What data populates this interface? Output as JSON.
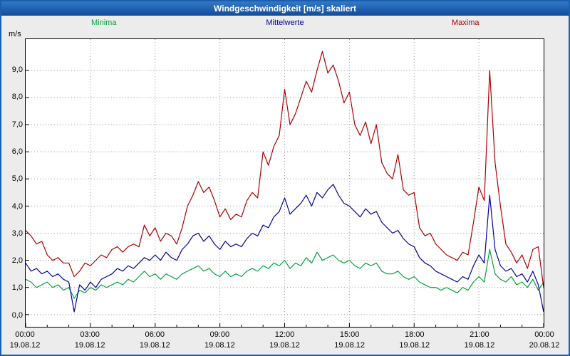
{
  "title_bar": {
    "title": "Windgeschwindigkeit [m/s] skaliert"
  },
  "chart_data": {
    "type": "line",
    "title": "Windgeschwindigkeit [m/s] skaliert",
    "ylabel": "m/s",
    "xlabel": "",
    "ylim": [
      -0.45,
      10.15
    ],
    "grid": true,
    "legend_position": "top",
    "y_ticks": [
      0,
      1,
      2,
      3,
      4,
      5,
      6,
      7,
      8,
      9
    ],
    "y_tick_labels": [
      "0,0",
      "1,0",
      "2,0",
      "3,0",
      "4,0",
      "5,0",
      "6,0",
      "7,0",
      "8,0",
      "9,0"
    ],
    "x_ticks_hours": [
      0,
      3,
      6,
      9,
      12,
      15,
      18,
      21,
      24
    ],
    "x_tick_labels": [
      "00:00",
      "03:00",
      "06:00",
      "09:00",
      "12:00",
      "15:00",
      "18:00",
      "21:00",
      "00:00"
    ],
    "x_tick_dates": [
      "19.08.12",
      "19.08.12",
      "19.08.12",
      "19.08.12",
      "19.08.12",
      "19.08.12",
      "19.08.12",
      "19.08.12",
      "20.08.12"
    ],
    "sample_interval_minutes": 15,
    "colors": {
      "minima": "#00a13a",
      "mittelwerte": "#000099",
      "maxima": "#aa0000",
      "grid": "#909090"
    },
    "legend": [
      {
        "name": "Minima",
        "color": "#00a13a"
      },
      {
        "name": "Mittelwerte",
        "color": "#000099"
      },
      {
        "name": "Maxima",
        "color": "#aa0000"
      }
    ],
    "series": [
      {
        "name": "Minima",
        "color": "#00a13a",
        "values": [
          1.3,
          1.2,
          1.0,
          1.1,
          1.2,
          1.0,
          1.1,
          0.9,
          1.0,
          0.6,
          0.9,
          0.8,
          1.0,
          0.9,
          1.1,
          1.0,
          1.1,
          1.2,
          1.1,
          1.3,
          1.2,
          1.4,
          1.6,
          1.4,
          1.5,
          1.3,
          1.5,
          1.4,
          1.3,
          1.5,
          1.6,
          1.7,
          1.8,
          1.6,
          1.7,
          1.5,
          1.4,
          1.6,
          1.4,
          1.5,
          1.4,
          1.6,
          1.7,
          1.6,
          1.8,
          1.7,
          1.9,
          1.8,
          2.0,
          1.7,
          1.9,
          1.8,
          2.1,
          1.9,
          2.3,
          2.0,
          2.1,
          2.2,
          2.0,
          1.9,
          2.0,
          1.8,
          1.7,
          1.9,
          1.8,
          1.9,
          1.6,
          1.5,
          1.5,
          1.6,
          1.4,
          1.3,
          1.4,
          1.2,
          1.1,
          1.0,
          1.0,
          0.9,
          1.0,
          0.9,
          0.8,
          1.0,
          0.9,
          1.2,
          1.4,
          1.2,
          2.4,
          1.5,
          1.3,
          1.2,
          1.4,
          1.1,
          1.2,
          1.0,
          1.3,
          0.9,
          1.2
        ]
      },
      {
        "name": "Mittelwerte",
        "color": "#000099",
        "values": [
          1.9,
          1.6,
          1.7,
          1.5,
          1.6,
          1.4,
          1.5,
          1.3,
          1.2,
          0.1,
          1.1,
          0.9,
          1.2,
          1.0,
          1.3,
          1.4,
          1.5,
          1.7,
          1.6,
          1.8,
          1.7,
          1.9,
          2.1,
          2.0,
          2.2,
          2.0,
          2.3,
          2.1,
          2.0,
          2.4,
          2.6,
          2.9,
          3.0,
          2.7,
          2.9,
          2.6,
          2.4,
          2.7,
          2.5,
          2.6,
          2.5,
          2.8,
          3.0,
          2.9,
          3.3,
          3.2,
          3.6,
          3.8,
          4.3,
          3.7,
          3.9,
          4.1,
          4.4,
          4.0,
          4.5,
          4.3,
          4.6,
          4.8,
          4.4,
          4.1,
          4.0,
          3.8,
          3.6,
          3.9,
          3.7,
          3.8,
          3.4,
          3.2,
          3.0,
          3.1,
          2.8,
          2.6,
          2.5,
          2.1,
          1.9,
          1.8,
          1.6,
          1.5,
          1.4,
          1.3,
          1.2,
          1.4,
          1.3,
          1.8,
          2.2,
          1.9,
          4.4,
          2.4,
          1.8,
          1.6,
          1.7,
          1.4,
          1.5,
          1.2,
          1.6,
          1.1,
          0.1
        ]
      },
      {
        "name": "Maxima",
        "color": "#aa0000",
        "values": [
          3.1,
          2.9,
          2.6,
          2.7,
          2.2,
          2.0,
          2.1,
          1.9,
          1.9,
          1.4,
          1.6,
          1.9,
          1.8,
          2.0,
          2.2,
          2.1,
          2.4,
          2.5,
          2.3,
          2.5,
          2.6,
          2.5,
          3.3,
          2.9,
          3.2,
          2.7,
          3.0,
          2.9,
          2.6,
          3.2,
          4.0,
          4.4,
          4.9,
          4.5,
          4.7,
          4.2,
          3.6,
          3.9,
          3.5,
          3.7,
          3.6,
          4.2,
          4.5,
          4.3,
          6.0,
          5.5,
          6.2,
          6.6,
          8.3,
          7.0,
          7.4,
          8.0,
          8.6,
          8.2,
          9.0,
          9.7,
          8.9,
          9.2,
          8.6,
          7.8,
          8.2,
          7.0,
          6.6,
          7.1,
          6.3,
          7.0,
          5.6,
          5.2,
          5.0,
          5.9,
          4.6,
          4.4,
          4.5,
          3.2,
          2.9,
          3.0,
          2.6,
          2.4,
          2.2,
          2.1,
          2.0,
          2.3,
          2.2,
          3.4,
          4.7,
          4.2,
          9.0,
          5.6,
          4.0,
          2.6,
          2.3,
          1.9,
          2.2,
          1.7,
          2.4,
          2.5,
          1.0
        ]
      }
    ]
  }
}
